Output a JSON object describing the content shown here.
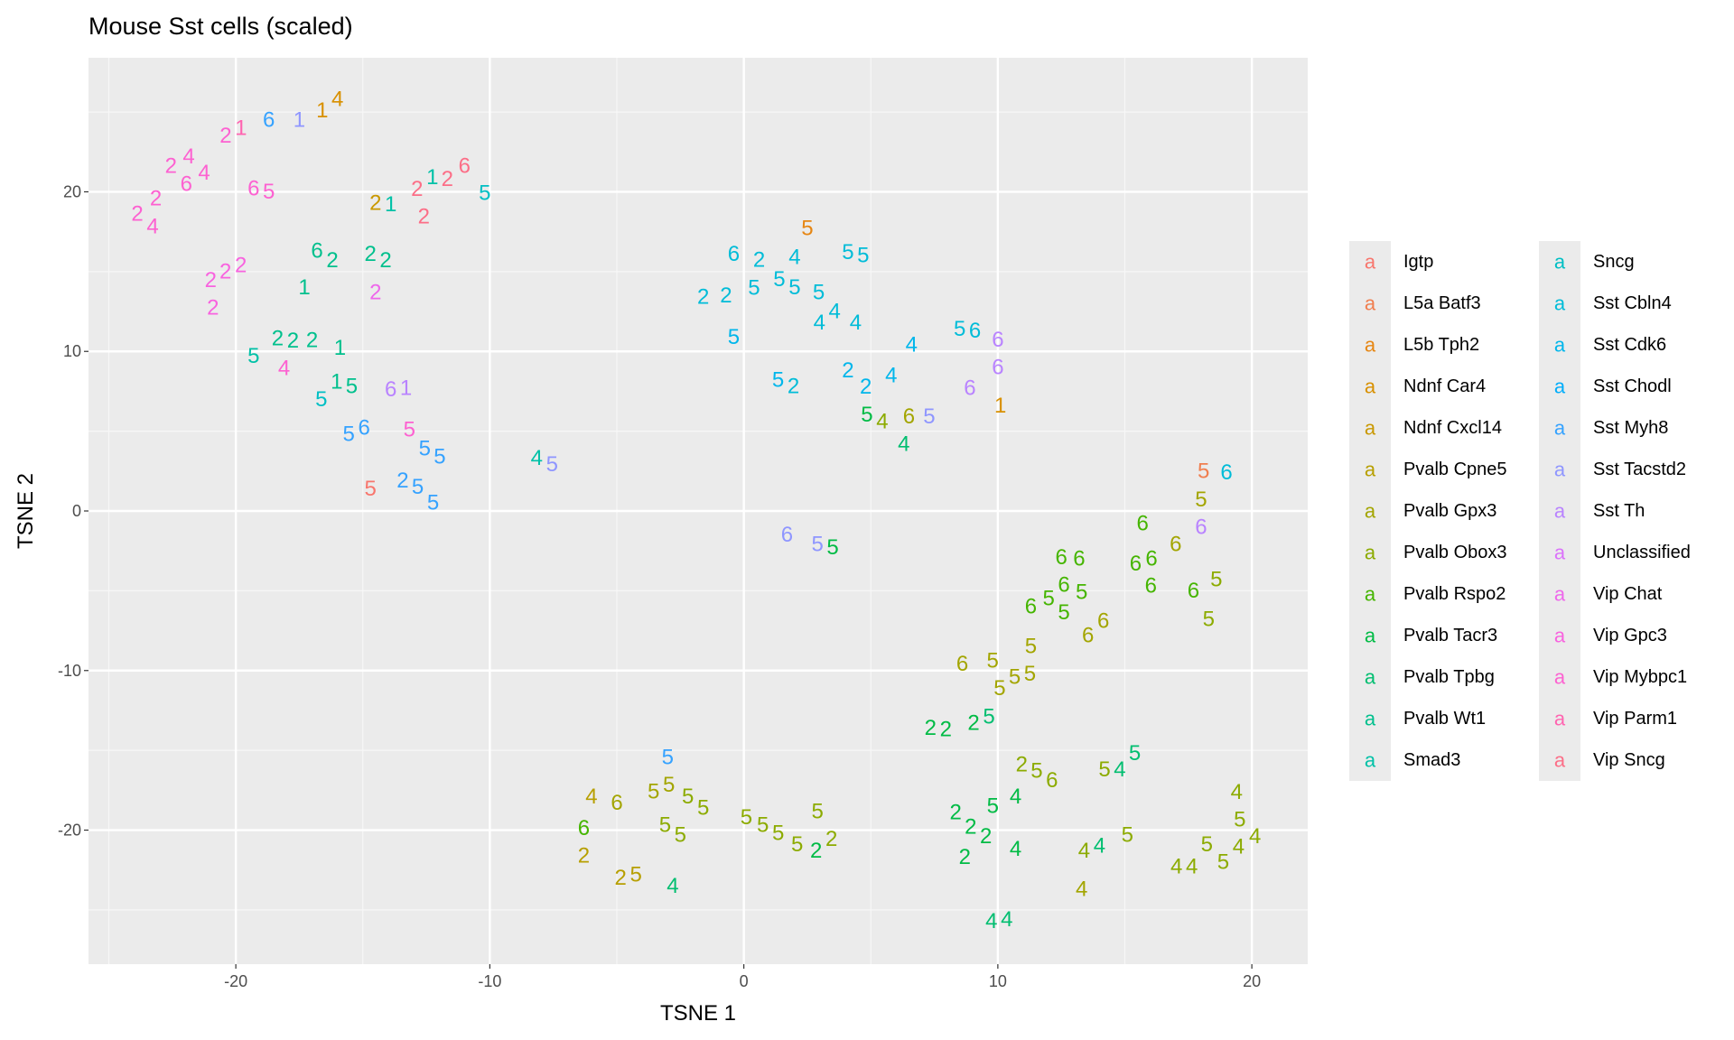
{
  "chart_data": {
    "type": "scatter",
    "marker": "text",
    "title": "Mouse Sst cells (scaled)",
    "xlabel": "TSNE 1",
    "ylabel": "TSNE 2",
    "xlim": [
      -25.8,
      22.2
    ],
    "ylim": [
      -28.4,
      28.4
    ],
    "x_ticks": [
      -20,
      -10,
      0,
      10,
      20
    ],
    "y_ticks": [
      -20,
      -10,
      0,
      10,
      20
    ],
    "grid": true,
    "legend_position": "right",
    "legend_glyph": "a",
    "legend": [
      {
        "name": "Igtp",
        "color": "#F8766D"
      },
      {
        "name": "L5a Batf3",
        "color": "#F07E4F"
      },
      {
        "name": "L5b Tph2",
        "color": "#E68613"
      },
      {
        "name": "Ndnf Car4",
        "color": "#D89000"
      },
      {
        "name": "Ndnf Cxcl14",
        "color": "#C99800"
      },
      {
        "name": "Pvalb Cpne5",
        "color": "#B79F00"
      },
      {
        "name": "Pvalb Gpx3",
        "color": "#A3A500"
      },
      {
        "name": "Pvalb Obox3",
        "color": "#8CAB00"
      },
      {
        "name": "Pvalb Rspo2",
        "color": "#45B500"
      },
      {
        "name": "Pvalb Tacr3",
        "color": "#00BB45"
      },
      {
        "name": "Pvalb Tpbg",
        "color": "#00BE70"
      },
      {
        "name": "Pvalb Wt1",
        "color": "#00C08D"
      },
      {
        "name": "Smad3",
        "color": "#00C1A7"
      },
      {
        "name": "Sncg",
        "color": "#00BFC4"
      },
      {
        "name": "Sst Cbln4",
        "color": "#00BCD8"
      },
      {
        "name": "Sst Cdk6",
        "color": "#00B6EB"
      },
      {
        "name": "Sst Chodl",
        "color": "#00ADFA"
      },
      {
        "name": "Sst Myh8",
        "color": "#35A2FF"
      },
      {
        "name": "Sst Tacstd2",
        "color": "#8F96FF"
      },
      {
        "name": "Sst Th",
        "color": "#B983FF"
      },
      {
        "name": "Unclassified",
        "color": "#DB72FB"
      },
      {
        "name": "Vip Chat",
        "color": "#EE67EB"
      },
      {
        "name": "Vip Gpc3",
        "color": "#F863DF"
      },
      {
        "name": "Vip Mybpc1",
        "color": "#FD61D1"
      },
      {
        "name": "Vip Parm1",
        "color": "#FF64B0"
      },
      {
        "name": "Vip Sncg",
        "color": "#FC6E87"
      }
    ],
    "point_fields": [
      "tsne1",
      "tsne2",
      "label",
      "legend_index"
    ],
    "points": [
      [
        -20.4,
        23.5,
        "2",
        23
      ],
      [
        -19.8,
        24.0,
        "1",
        24
      ],
      [
        -18.7,
        24.5,
        "6",
        17
      ],
      [
        -17.5,
        24.5,
        "1",
        18
      ],
      [
        -16.6,
        25.1,
        "1",
        3
      ],
      [
        -16.0,
        25.8,
        "4",
        3
      ],
      [
        -22.4,
        21.6,
        "2",
        23
      ],
      [
        -21.7,
        21.9,
        "4",
        23
      ],
      [
        -21.4,
        21.2,
        "4",
        23
      ],
      [
        -22.1,
        20.8,
        "6",
        23
      ],
      [
        -23.3,
        19.4,
        "2",
        23
      ],
      [
        -23.6,
        18.6,
        "2",
        23
      ],
      [
        -23.4,
        18.0,
        "4",
        23
      ],
      [
        -19.1,
        20.2,
        "6",
        23
      ],
      [
        -18.9,
        20.0,
        "5",
        23
      ],
      [
        -19.9,
        15.4,
        "2",
        22
      ],
      [
        -20.5,
        15.0,
        "2",
        22
      ],
      [
        -20.8,
        14.3,
        "2",
        22
      ],
      [
        -20.9,
        12.9,
        "2",
        22
      ],
      [
        -12.4,
        20.9,
        "1",
        12
      ],
      [
        -11.8,
        20.8,
        "2",
        25
      ],
      [
        -11.0,
        21.6,
        "6",
        25
      ],
      [
        -10.2,
        19.9,
        "5",
        13
      ],
      [
        -12.6,
        20.0,
        "2",
        25
      ],
      [
        -12.6,
        18.6,
        "2",
        25
      ],
      [
        -14.4,
        19.3,
        "2",
        4
      ],
      [
        -14.0,
        19.2,
        "1",
        12
      ],
      [
        -16.5,
        16.3,
        "6",
        11
      ],
      [
        -16.5,
        15.7,
        "2",
        11
      ],
      [
        -14.6,
        16.1,
        "2",
        11
      ],
      [
        -14.2,
        15.7,
        "2",
        11
      ],
      [
        -17.3,
        14.0,
        "1",
        11
      ],
      [
        -14.5,
        13.7,
        "2",
        21
      ],
      [
        -18.2,
        10.8,
        "2",
        11
      ],
      [
        -17.9,
        10.5,
        "2",
        11
      ],
      [
        -17.0,
        10.7,
        "2",
        11
      ],
      [
        -15.9,
        10.2,
        "1",
        11
      ],
      [
        -19.3,
        9.7,
        "5",
        12
      ],
      [
        -18.1,
        9.1,
        "4",
        23
      ],
      [
        -16.0,
        8.1,
        "1",
        11
      ],
      [
        -15.7,
        7.8,
        "5",
        11
      ],
      [
        -16.4,
        7.0,
        "5",
        13
      ],
      [
        -13.6,
        7.6,
        "6",
        19
      ],
      [
        -13.6,
        7.7,
        "1",
        19
      ],
      [
        -15.5,
        4.8,
        "5",
        17
      ],
      [
        -15.0,
        5.2,
        "6",
        17
      ],
      [
        -13.1,
        5.1,
        "5",
        23
      ],
      [
        -12.4,
        3.9,
        "5",
        17
      ],
      [
        -12.2,
        3.4,
        "5",
        17
      ],
      [
        -14.7,
        1.4,
        "5",
        0
      ],
      [
        -13.1,
        1.9,
        "2",
        17
      ],
      [
        -13.1,
        1.5,
        "5",
        17
      ],
      [
        -12.3,
        0.5,
        "5",
        17
      ],
      [
        -8.0,
        3.3,
        "4",
        12
      ],
      [
        -7.7,
        2.9,
        "5",
        18
      ],
      [
        2.5,
        17.7,
        "5",
        2
      ],
      [
        -0.4,
        16.1,
        "6",
        14
      ],
      [
        0.6,
        15.4,
        "2",
        14
      ],
      [
        1.9,
        15.9,
        "4",
        14
      ],
      [
        4.2,
        16.2,
        "5",
        14
      ],
      [
        4.6,
        16.0,
        "5",
        14
      ],
      [
        0.4,
        14.3,
        "5",
        14
      ],
      [
        1.5,
        14.5,
        "5",
        14
      ],
      [
        2.0,
        14.0,
        "5",
        14
      ],
      [
        3.1,
        13.7,
        "5",
        14
      ],
      [
        -1.6,
        13.4,
        "2",
        14
      ],
      [
        -0.7,
        13.5,
        "2",
        14
      ],
      [
        3.4,
        12.5,
        "4",
        14
      ],
      [
        3.0,
        11.8,
        "4",
        14
      ],
      [
        4.4,
        11.8,
        "4",
        14
      ],
      [
        -0.4,
        10.9,
        "5",
        15
      ],
      [
        8.6,
        11.4,
        "5",
        14
      ],
      [
        9.0,
        11.3,
        "6",
        14
      ],
      [
        6.6,
        10.4,
        "4",
        15
      ],
      [
        1.4,
        8.2,
        "5",
        15
      ],
      [
        1.9,
        7.8,
        "2",
        14
      ],
      [
        4.1,
        8.8,
        "2",
        15
      ],
      [
        5.8,
        8.5,
        "4",
        15
      ],
      [
        4.8,
        7.6,
        "2",
        15
      ],
      [
        10.0,
        10.4,
        "6",
        19
      ],
      [
        10.0,
        9.3,
        "6",
        19
      ],
      [
        8.9,
        7.7,
        "6",
        19
      ],
      [
        10.1,
        6.6,
        "1",
        3
      ],
      [
        5.0,
        6.2,
        "5",
        9
      ],
      [
        5.3,
        5.6,
        "4",
        7
      ],
      [
        6.5,
        5.7,
        "6",
        6
      ],
      [
        7.3,
        5.9,
        "5",
        18
      ],
      [
        6.3,
        4.4,
        "4",
        10
      ],
      [
        1.7,
        -1.5,
        "6",
        18
      ],
      [
        3.0,
        -2.1,
        "5",
        18
      ],
      [
        3.4,
        -2.3,
        "5",
        9
      ],
      [
        18.1,
        2.5,
        "5",
        1
      ],
      [
        19.0,
        2.4,
        "6",
        14
      ],
      [
        18.0,
        0.5,
        "5",
        6
      ],
      [
        18.0,
        -0.8,
        "6",
        19
      ],
      [
        15.7,
        -0.8,
        "6",
        8
      ],
      [
        17.0,
        -2.1,
        "6",
        6
      ],
      [
        15.8,
        -3.0,
        "6",
        8
      ],
      [
        15.7,
        -3.3,
        "6",
        8
      ],
      [
        12.5,
        -3.2,
        "6",
        8
      ],
      [
        13.2,
        -3.0,
        "6",
        8
      ],
      [
        16.0,
        -4.7,
        "6",
        8
      ],
      [
        17.7,
        -5.0,
        "6",
        8
      ],
      [
        18.6,
        -4.3,
        "5",
        7
      ],
      [
        18.3,
        -6.8,
        "5",
        7
      ],
      [
        11.3,
        -6.0,
        "6",
        8
      ],
      [
        12.0,
        -5.5,
        "5",
        8
      ],
      [
        12.6,
        -4.8,
        "6",
        8
      ],
      [
        12.6,
        -5.9,
        "5",
        8
      ],
      [
        13.3,
        -5.1,
        "5",
        8
      ],
      [
        13.6,
        -7.8,
        "6",
        6
      ],
      [
        14.1,
        -6.9,
        "6",
        6
      ],
      [
        11.3,
        -8.7,
        "5",
        6
      ],
      [
        11.2,
        -10.0,
        "5",
        6
      ],
      [
        8.6,
        -9.6,
        "6",
        6
      ],
      [
        9.9,
        -9.6,
        "5",
        6
      ],
      [
        10.3,
        -10.4,
        "5",
        6
      ],
      [
        10.4,
        -10.9,
        "5",
        6
      ],
      [
        7.5,
        -13.6,
        "2",
        9
      ],
      [
        7.8,
        -13.7,
        "2",
        9
      ],
      [
        9.2,
        -13.3,
        "2",
        9
      ],
      [
        9.5,
        -12.9,
        "5",
        10
      ],
      [
        11.3,
        -15.9,
        "2",
        7
      ],
      [
        11.4,
        -16.3,
        "5",
        7
      ],
      [
        11.9,
        -16.9,
        "6",
        7
      ],
      [
        14.9,
        -15.2,
        "5",
        10
      ],
      [
        14.6,
        -16.2,
        "5",
        7
      ],
      [
        14.9,
        -16.2,
        "4",
        10
      ],
      [
        10.7,
        -17.9,
        "4",
        9
      ],
      [
        9.8,
        -18.5,
        "5",
        9
      ],
      [
        8.7,
        -18.9,
        "2",
        9
      ],
      [
        8.8,
        -19.8,
        "2",
        9
      ],
      [
        9.3,
        -20.4,
        "2",
        9
      ],
      [
        8.7,
        -21.7,
        "2",
        9
      ],
      [
        10.7,
        -21.2,
        "4",
        9
      ],
      [
        13.5,
        -21.3,
        "4",
        7
      ],
      [
        13.9,
        -21.0,
        "4",
        10
      ],
      [
        15.1,
        -20.3,
        "5",
        7
      ],
      [
        13.3,
        -23.7,
        "4",
        6
      ],
      [
        17.3,
        -22.3,
        "4",
        7
      ],
      [
        17.5,
        -22.3,
        "4",
        7
      ],
      [
        18.1,
        -20.9,
        "5",
        7
      ],
      [
        19.0,
        -22.0,
        "5",
        7
      ],
      [
        19.4,
        -21.0,
        "4",
        7
      ],
      [
        20.0,
        -20.4,
        "4",
        7
      ],
      [
        19.4,
        -18.0,
        "4",
        7
      ],
      [
        19.6,
        -19.0,
        "5",
        7
      ],
      [
        9.9,
        -25.7,
        "4",
        10
      ],
      [
        10.2,
        -25.6,
        "4",
        10
      ],
      [
        -3.0,
        -15.6,
        "5",
        17
      ],
      [
        -3.0,
        -17.0,
        "5",
        6
      ],
      [
        -3.5,
        -17.6,
        "5",
        6
      ],
      [
        -6.0,
        -17.9,
        "4",
        5
      ],
      [
        -5.0,
        -18.3,
        "6",
        6
      ],
      [
        -2.0,
        -17.9,
        "5",
        7
      ],
      [
        -1.8,
        -18.6,
        "5",
        7
      ],
      [
        -2.9,
        -19.7,
        "5",
        7
      ],
      [
        -2.7,
        -20.3,
        "5",
        7
      ],
      [
        -6.3,
        -20.3,
        "6",
        8
      ],
      [
        -6.3,
        -21.2,
        "2",
        5
      ],
      [
        -4.8,
        -23.0,
        "2",
        5
      ],
      [
        -4.3,
        -22.8,
        "5",
        5
      ],
      [
        -2.8,
        -23.5,
        "4",
        10
      ],
      [
        0.1,
        -19.2,
        "5",
        7
      ],
      [
        0.8,
        -19.7,
        "5",
        7
      ],
      [
        1.3,
        -20.2,
        "5",
        7
      ],
      [
        2.1,
        -20.9,
        "5",
        7
      ],
      [
        2.9,
        -18.9,
        "5",
        7
      ],
      [
        3.3,
        -20.5,
        "2",
        7
      ],
      [
        3.0,
        -21.3,
        "2",
        9
      ]
    ]
  }
}
